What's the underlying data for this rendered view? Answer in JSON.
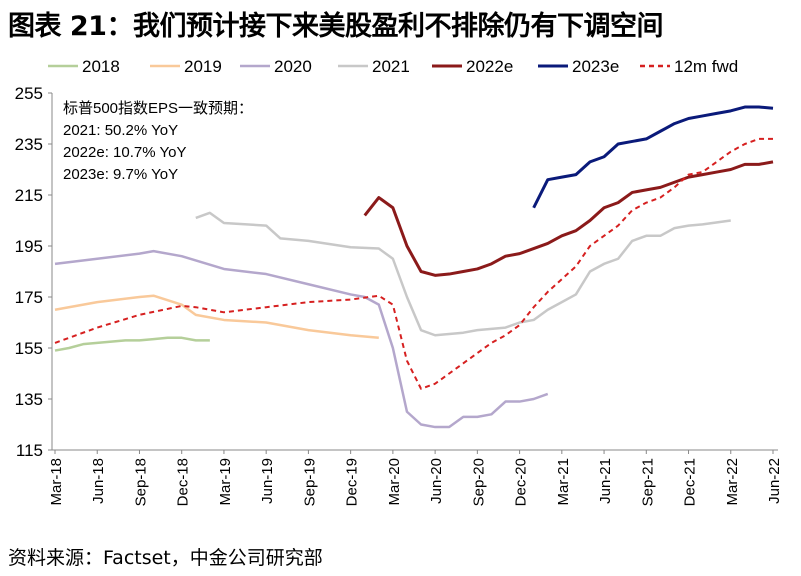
{
  "title": "图表 21：我们预计接下来美股盈利不排除仍有下调空间",
  "source": "资料来源：Factset，中金公司研究部",
  "chart_data": {
    "type": "line",
    "title": "图表 21：我们预计接下来美股盈利不排除仍有下调空间",
    "ylim": [
      115,
      255
    ],
    "yticks": [
      115,
      135,
      155,
      175,
      195,
      215,
      235,
      255
    ],
    "xlim": [
      "2018-03",
      "2022-06"
    ],
    "xticks": [
      "Mar-18",
      "Jun-18",
      "Sep-18",
      "Dec-18",
      "Mar-19",
      "Jun-19",
      "Sep-19",
      "Dec-19",
      "Mar-20",
      "Jun-20",
      "Sep-20",
      "Dec-20",
      "Mar-21",
      "Jun-21",
      "Sep-21",
      "Dec-21",
      "Mar-22",
      "Jun-22"
    ],
    "grid": false,
    "legend": "top",
    "annotation": [
      "标普500指数EPS一致预期：",
      "2021: 50.2% YoY",
      "2022e: 10.7% YoY",
      "2023e: 9.7% YoY"
    ],
    "series": [
      {
        "name": "2018",
        "color": "#b5cf9a",
        "dashed": false,
        "points": [
          [
            "2018-03",
            154
          ],
          [
            "2018-04",
            155
          ],
          [
            "2018-05",
            156.5
          ],
          [
            "2018-06",
            157
          ],
          [
            "2018-07",
            157.5
          ],
          [
            "2018-08",
            158
          ],
          [
            "2018-09",
            158
          ],
          [
            "2018-10",
            158.5
          ],
          [
            "2018-11",
            159
          ],
          [
            "2018-12",
            159
          ],
          [
            "2019-01",
            158
          ],
          [
            "2019-02",
            158
          ]
        ]
      },
      {
        "name": "2019",
        "color": "#f9c99a",
        "dashed": false,
        "points": [
          [
            "2018-03",
            170
          ],
          [
            "2018-06",
            173
          ],
          [
            "2018-09",
            175
          ],
          [
            "2018-10",
            175.5
          ],
          [
            "2018-12",
            172
          ],
          [
            "2019-01",
            168
          ],
          [
            "2019-03",
            166
          ],
          [
            "2019-06",
            165
          ],
          [
            "2019-09",
            162
          ],
          [
            "2019-12",
            160
          ],
          [
            "2020-02",
            159
          ]
        ]
      },
      {
        "name": "2020",
        "color": "#b4a7cc",
        "dashed": false,
        "points": [
          [
            "2018-03",
            188
          ],
          [
            "2018-06",
            190
          ],
          [
            "2018-09",
            192
          ],
          [
            "2018-10",
            193
          ],
          [
            "2018-12",
            191
          ],
          [
            "2019-03",
            186
          ],
          [
            "2019-06",
            184
          ],
          [
            "2019-09",
            180
          ],
          [
            "2019-12",
            176
          ],
          [
            "2020-01",
            175
          ],
          [
            "2020-02",
            172
          ],
          [
            "2020-03",
            155
          ],
          [
            "2020-04",
            130
          ],
          [
            "2020-05",
            125
          ],
          [
            "2020-06",
            124
          ],
          [
            "2020-07",
            124
          ],
          [
            "2020-08",
            128
          ],
          [
            "2020-09",
            128
          ],
          [
            "2020-10",
            129
          ],
          [
            "2020-11",
            134
          ],
          [
            "2020-12",
            134
          ],
          [
            "2021-01",
            135
          ],
          [
            "2021-02",
            137
          ]
        ]
      },
      {
        "name": "2021",
        "color": "#c8c8c8",
        "dashed": false,
        "points": [
          [
            "2019-01",
            206
          ],
          [
            "2019-02",
            208
          ],
          [
            "2019-03",
            204
          ],
          [
            "2019-06",
            203
          ],
          [
            "2019-07",
            198
          ],
          [
            "2019-09",
            197
          ],
          [
            "2019-12",
            194.5
          ],
          [
            "2020-02",
            194
          ],
          [
            "2020-03",
            190
          ],
          [
            "2020-04",
            175
          ],
          [
            "2020-05",
            162
          ],
          [
            "2020-06",
            160
          ],
          [
            "2020-08",
            161
          ],
          [
            "2020-09",
            162
          ],
          [
            "2020-11",
            163
          ],
          [
            "2020-12",
            165
          ],
          [
            "2021-01",
            166
          ],
          [
            "2021-02",
            170
          ],
          [
            "2021-03",
            173
          ],
          [
            "2021-04",
            176
          ],
          [
            "2021-05",
            185
          ],
          [
            "2021-06",
            188
          ],
          [
            "2021-07",
            190
          ],
          [
            "2021-08",
            197
          ],
          [
            "2021-09",
            199
          ],
          [
            "2021-10",
            199
          ],
          [
            "2021-11",
            202
          ],
          [
            "2021-12",
            203
          ],
          [
            "2022-01",
            203.5
          ],
          [
            "2022-03",
            205
          ]
        ]
      },
      {
        "name": "2022e",
        "color": "#8b1a1a",
        "dashed": false,
        "points": [
          [
            "2020-01",
            207
          ],
          [
            "2020-02",
            214
          ],
          [
            "2020-03",
            210
          ],
          [
            "2020-04",
            195
          ],
          [
            "2020-05",
            185
          ],
          [
            "2020-06",
            183.5
          ],
          [
            "2020-07",
            184
          ],
          [
            "2020-08",
            185
          ],
          [
            "2020-09",
            186
          ],
          [
            "2020-10",
            188
          ],
          [
            "2020-11",
            191
          ],
          [
            "2020-12",
            192
          ],
          [
            "2021-01",
            194
          ],
          [
            "2021-02",
            196
          ],
          [
            "2021-03",
            199
          ],
          [
            "2021-04",
            201
          ],
          [
            "2021-05",
            205
          ],
          [
            "2021-06",
            210
          ],
          [
            "2021-07",
            212
          ],
          [
            "2021-08",
            216
          ],
          [
            "2021-09",
            217
          ],
          [
            "2021-10",
            218
          ],
          [
            "2021-11",
            220
          ],
          [
            "2021-12",
            222
          ],
          [
            "2022-01",
            223
          ],
          [
            "2022-02",
            224
          ],
          [
            "2022-03",
            225
          ],
          [
            "2022-04",
            227
          ],
          [
            "2022-05",
            227
          ],
          [
            "2022-06",
            228
          ]
        ]
      },
      {
        "name": "2023e",
        "color": "#0a1a7a",
        "dashed": false,
        "points": [
          [
            "2021-01",
            210
          ],
          [
            "2021-02",
            221
          ],
          [
            "2021-03",
            222
          ],
          [
            "2021-04",
            223
          ],
          [
            "2021-05",
            228
          ],
          [
            "2021-06",
            230
          ],
          [
            "2021-07",
            235
          ],
          [
            "2021-08",
            236
          ],
          [
            "2021-09",
            237
          ],
          [
            "2021-10",
            240
          ],
          [
            "2021-11",
            243
          ],
          [
            "2021-12",
            245
          ],
          [
            "2022-01",
            246
          ],
          [
            "2022-02",
            247
          ],
          [
            "2022-03",
            248
          ],
          [
            "2022-04",
            249.5
          ],
          [
            "2022-05",
            249.5
          ],
          [
            "2022-06",
            249
          ]
        ]
      },
      {
        "name": "12m fwd",
        "color": "#d62020",
        "dashed": true,
        "points": [
          [
            "2018-03",
            157
          ],
          [
            "2018-06",
            163
          ],
          [
            "2018-09",
            168
          ],
          [
            "2018-12",
            171.5
          ],
          [
            "2019-01",
            171
          ],
          [
            "2019-03",
            169
          ],
          [
            "2019-06",
            171
          ],
          [
            "2019-09",
            173
          ],
          [
            "2019-12",
            174
          ],
          [
            "2020-02",
            175.5
          ],
          [
            "2020-03",
            172
          ],
          [
            "2020-04",
            150
          ],
          [
            "2020-05",
            139
          ],
          [
            "2020-06",
            141
          ],
          [
            "2020-07",
            145
          ],
          [
            "2020-08",
            149
          ],
          [
            "2020-09",
            153
          ],
          [
            "2020-10",
            157
          ],
          [
            "2020-11",
            160
          ],
          [
            "2020-12",
            164
          ],
          [
            "2021-01",
            171
          ],
          [
            "2021-02",
            177
          ],
          [
            "2021-03",
            182
          ],
          [
            "2021-04",
            187
          ],
          [
            "2021-05",
            195
          ],
          [
            "2021-06",
            199
          ],
          [
            "2021-07",
            203
          ],
          [
            "2021-08",
            209
          ],
          [
            "2021-09",
            212
          ],
          [
            "2021-10",
            214
          ],
          [
            "2021-11",
            218
          ],
          [
            "2021-12",
            223
          ],
          [
            "2022-01",
            224
          ],
          [
            "2022-02",
            228
          ],
          [
            "2022-03",
            232
          ],
          [
            "2022-04",
            235
          ],
          [
            "2022-05",
            237
          ],
          [
            "2022-06",
            237
          ]
        ]
      }
    ]
  }
}
